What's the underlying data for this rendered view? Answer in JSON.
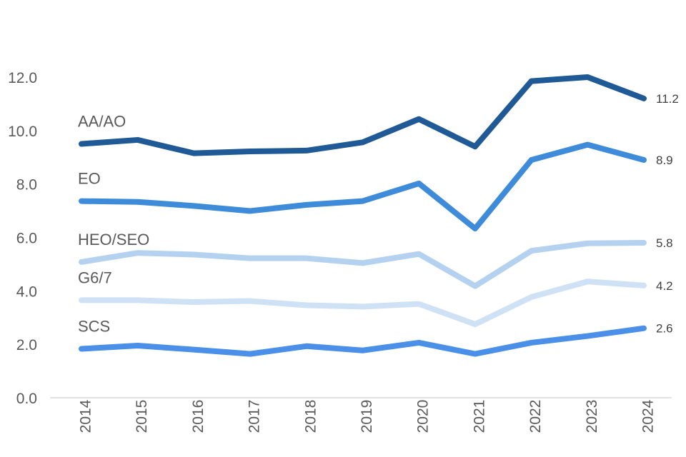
{
  "chart_data": {
    "type": "line",
    "title": "",
    "xlabel": "",
    "ylabel": "",
    "x": [
      "2014",
      "2015",
      "2016",
      "2017",
      "2018",
      "2019",
      "2020",
      "2021",
      "2022",
      "2023",
      "2024"
    ],
    "ylim": [
      0,
      12
    ],
    "yticks": [
      "0.0",
      "2.0",
      "4.0",
      "6.0",
      "8.0",
      "10.0",
      "12.0"
    ],
    "ytick_values": [
      0,
      2,
      4,
      6,
      8,
      10,
      12
    ],
    "grid": false,
    "legend": "inline labels",
    "series": [
      {
        "name": "AA/AO",
        "color": "#1f5a96",
        "values": [
          9.5,
          9.65,
          9.15,
          9.22,
          9.25,
          9.56,
          10.43,
          9.4,
          11.85,
          12.0,
          11.2
        ],
        "end_label": "11.2"
      },
      {
        "name": "EO",
        "color": "#3d8bd9",
        "values": [
          7.36,
          7.33,
          7.18,
          6.99,
          7.22,
          7.36,
          8.02,
          6.33,
          8.9,
          9.47,
          8.9
        ],
        "end_label": "8.9"
      },
      {
        "name": "HEO/SEO",
        "color": "#b5d1f0",
        "values": [
          5.08,
          5.42,
          5.36,
          5.22,
          5.22,
          5.04,
          5.38,
          4.18,
          5.5,
          5.78,
          5.8
        ],
        "end_label": "5.8"
      },
      {
        "name": "G6/7",
        "color": "#cfe1f5",
        "values": [
          3.65,
          3.65,
          3.58,
          3.62,
          3.46,
          3.41,
          3.51,
          2.75,
          3.77,
          4.35,
          4.2
        ],
        "end_label": "4.2"
      },
      {
        "name": "SCS",
        "color": "#4a8fe8",
        "values": [
          1.83,
          1.95,
          1.8,
          1.64,
          1.93,
          1.77,
          2.06,
          1.64,
          2.06,
          2.31,
          2.6
        ],
        "end_label": "2.6"
      }
    ]
  }
}
